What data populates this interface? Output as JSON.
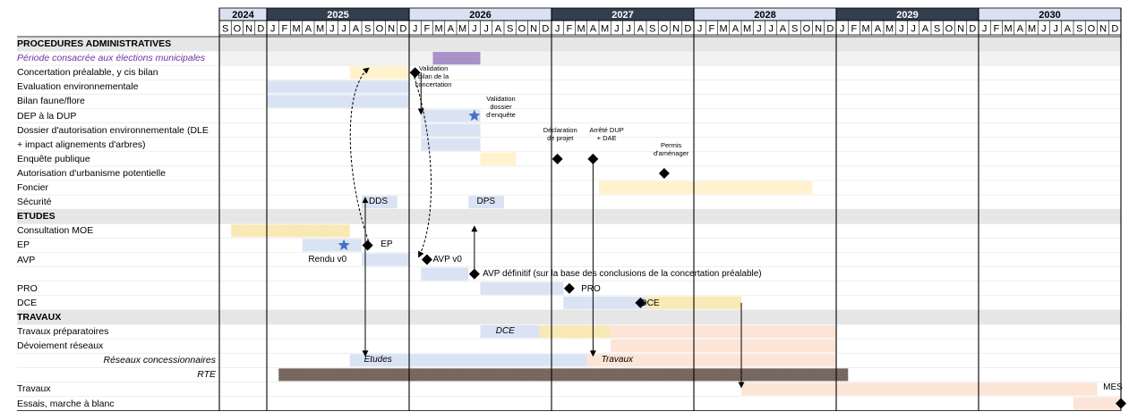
{
  "chart_data": {
    "type": "gantt",
    "years": [
      {
        "label": "2024",
        "start": "2024-09",
        "months": 4
      },
      {
        "label": "2025",
        "start": "2025-01",
        "months": 12
      },
      {
        "label": "2026",
        "start": "2026-01",
        "months": 12
      },
      {
        "label": "2027",
        "start": "2027-01",
        "months": 12
      },
      {
        "label": "2028",
        "start": "2028-01",
        "months": 12
      },
      {
        "label": "2029",
        "start": "2029-01",
        "months": 12
      },
      {
        "label": "2030",
        "start": "2030-01",
        "months": 12
      }
    ],
    "month_letters": [
      "S",
      "O",
      "N",
      "D",
      "J",
      "F",
      "M",
      "A",
      "M",
      "J",
      "J",
      "A",
      "S",
      "O",
      "N",
      "D",
      "J",
      "F",
      "M",
      "A",
      "M",
      "J",
      "J",
      "A",
      "S",
      "O",
      "N",
      "D",
      "J",
      "F",
      "M",
      "A",
      "M",
      "J",
      "J",
      "A",
      "S",
      "O",
      "N",
      "D",
      "J",
      "F",
      "M",
      "A",
      "M",
      "J",
      "J",
      "A",
      "S",
      "O",
      "N",
      "D",
      "J",
      "F",
      "M",
      "A",
      "M",
      "J",
      "J",
      "A",
      "S",
      "O",
      "N",
      "D",
      "J",
      "F",
      "M",
      "A",
      "M",
      "J",
      "J",
      "A",
      "S",
      "O",
      "N",
      "D"
    ],
    "rows": [
      {
        "label": "PROCEDURES ADMINISTRATIVES",
        "section": true
      },
      {
        "label": "Période consacrée aux élections municipales",
        "style": "purple-italic"
      },
      {
        "label": "Concertation préalable, y cis bilan"
      },
      {
        "label": "Evaluation environnementale"
      },
      {
        "label": "Bilan faune/flore"
      },
      {
        "label": "DEP à la DUP"
      },
      {
        "label": "Dossier d'autorisation environnementale (DLE"
      },
      {
        "label": "+ impact alignements d'arbres)"
      },
      {
        "label": "Enquête publique"
      },
      {
        "label": "Autorisation d'urbanisme potentielle"
      },
      {
        "label": "Foncier"
      },
      {
        "label": "Sécurité"
      },
      {
        "label": "ETUDES",
        "section": true
      },
      {
        "label": "Consultation MOE"
      },
      {
        "label": "EP"
      },
      {
        "label": "AVP"
      },
      {
        "label": ""
      },
      {
        "label": "PRO"
      },
      {
        "label": "DCE"
      },
      {
        "label": "TRAVAUX",
        "section": true
      },
      {
        "label": "Travaux préparatoires"
      },
      {
        "label": "Dévoiement réseaux"
      },
      {
        "label": "Réseaux concessionnaires",
        "style": "italic-right"
      },
      {
        "label": "RTE",
        "style": "italic-right"
      },
      {
        "label": "Travaux"
      },
      {
        "label": "Essais, marche à blanc"
      }
    ],
    "bars": [
      {
        "row": 1,
        "start": "2026-03",
        "end": "2026-06",
        "kind": "purple"
      },
      {
        "row": 2,
        "start": "2025-08",
        "end": "2025-12",
        "kind": "yellow"
      },
      {
        "row": 3,
        "start": "2025-01",
        "end": "2025-12",
        "kind": "blue"
      },
      {
        "row": 4,
        "start": "2025-01",
        "end": "2025-12",
        "kind": "blue"
      },
      {
        "row": 5,
        "start": "2026-02",
        "end": "2026-06",
        "kind": "blue"
      },
      {
        "row": 6,
        "start": "2026-02",
        "end": "2026-06",
        "kind": "blue"
      },
      {
        "row": 7,
        "start": "2026-02",
        "end": "2026-06",
        "kind": "blue"
      },
      {
        "row": 8,
        "start": "2026-07",
        "end": "2026-09",
        "kind": "yellow"
      },
      {
        "row": 10,
        "start": "2027-05",
        "end": "2028-10",
        "kind": "yellow"
      },
      {
        "row": 11,
        "start": "2025-09",
        "end": "2025-11",
        "kind": "blue"
      },
      {
        "row": 11,
        "start": "2026-06",
        "end": "2026-08",
        "kind": "blue"
      },
      {
        "row": 13,
        "start": "2024-10",
        "end": "2025-07",
        "kind": "yellow-hatch"
      },
      {
        "row": 14,
        "start": "2025-04",
        "end": "2025-08",
        "kind": "blue"
      },
      {
        "row": 15,
        "start": "2025-09",
        "end": "2025-12",
        "kind": "blue"
      },
      {
        "row": 16,
        "start": "2026-02",
        "end": "2026-05",
        "kind": "blue"
      },
      {
        "row": 17,
        "start": "2026-07",
        "end": "2027-01",
        "kind": "blue"
      },
      {
        "row": 18,
        "start": "2027-02",
        "end": "2027-08",
        "kind": "blue"
      },
      {
        "row": 18,
        "start": "2027-09",
        "end": "2028-04",
        "kind": "yellow-hatch"
      },
      {
        "row": 20,
        "start": "2026-07",
        "end": "2026-11",
        "kind": "blue"
      },
      {
        "row": 20,
        "start": "2026-12",
        "end": "2027-05",
        "kind": "yellow-hatch"
      },
      {
        "row": 20,
        "start": "2027-06",
        "end": "2028-12",
        "kind": "peach"
      },
      {
        "row": 21,
        "start": "2027-06",
        "end": "2028-12",
        "kind": "peach"
      },
      {
        "row": 22,
        "start": "2025-08",
        "end": "2027-03",
        "kind": "blue"
      },
      {
        "row": 22,
        "start": "2027-04",
        "end": "2028-12",
        "kind": "peach"
      },
      {
        "row": 23,
        "start": "2025-02",
        "end": "2029-01",
        "kind": "brown"
      },
      {
        "row": 24,
        "start": "2028-05",
        "end": "2030-10",
        "kind": "peach"
      },
      {
        "row": 25,
        "start": "2030-09",
        "end": "2030-12",
        "kind": "peach"
      }
    ],
    "milestones": [
      {
        "row": 2,
        "date": "2026-01",
        "shape": "diamond"
      },
      {
        "row": 5,
        "date": "2026-06",
        "shape": "star"
      },
      {
        "row": 8,
        "date": "2027-01",
        "shape": "diamond"
      },
      {
        "row": 8,
        "date": "2027-04",
        "shape": "diamond"
      },
      {
        "row": 9,
        "date": "2027-10",
        "shape": "diamond"
      },
      {
        "row": 14,
        "date": "2025-07",
        "shape": "star"
      },
      {
        "row": 14,
        "date": "2025-09",
        "shape": "diamond"
      },
      {
        "row": 15,
        "date": "2026-02",
        "shape": "diamond"
      },
      {
        "row": 16,
        "date": "2026-06",
        "shape": "diamond"
      },
      {
        "row": 17,
        "date": "2027-02",
        "shape": "diamond"
      },
      {
        "row": 18,
        "date": "2027-08",
        "shape": "diamond"
      },
      {
        "row": 25,
        "date": "2031-01",
        "shape": "diamond"
      }
    ],
    "annotations": [
      {
        "text": "Validation bilan de la concertation",
        "lines": [
          "Validation",
          "bilan de la",
          "concertation"
        ],
        "size": "small"
      },
      {
        "text": "Validation dossier d'enquête",
        "lines": [
          "Validation",
          "dossier",
          "d'enquête"
        ],
        "size": "small"
      },
      {
        "text": "Déclaration de projet",
        "lines": [
          "Déclaration",
          "de projet"
        ],
        "size": "small"
      },
      {
        "text": "Arrêté DUP + DAE",
        "lines": [
          "Arrêté DUP",
          "+ DAE"
        ],
        "size": "small"
      },
      {
        "text": "Permis d'aménager",
        "lines": [
          "Permis",
          "d'aménager"
        ],
        "size": "small"
      },
      {
        "text": "DDS"
      },
      {
        "text": "DPS"
      },
      {
        "text": "EP"
      },
      {
        "text": "Rendu v0"
      },
      {
        "text": "AVP v0"
      },
      {
        "text": "AVP définitif (sur la base des conclusions de la concertation préalable)"
      },
      {
        "text": "PRO"
      },
      {
        "text": "DCE"
      },
      {
        "text": "DCE",
        "italic": true
      },
      {
        "text": "Etudes",
        "italic": true
      },
      {
        "text": "Travaux",
        "italic": true
      },
      {
        "text": "MES"
      }
    ],
    "colors": {
      "header_light": "#d9e1f2",
      "header_dark": "#333f4f",
      "section_row": "#e7e6e6",
      "row_shade": "#f2f2f2",
      "bar_blue": "#dae3f3",
      "bar_yellow": "#fff2cc",
      "bar_peach": "#fce4d6",
      "bar_purple": "#b4a0d0",
      "bar_brown": "#8c7b74",
      "purple_text": "#7030a0",
      "star": "#4472c4"
    }
  }
}
